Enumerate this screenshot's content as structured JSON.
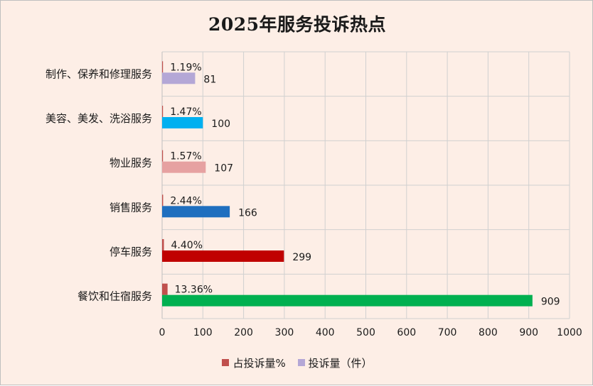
{
  "chart_data": {
    "type": "bar",
    "orientation": "horizontal",
    "title": "2025年服务投诉热点",
    "categories": [
      "制作、保养和修理服务",
      "美容、美发、洗浴服务",
      "物业服务",
      "销售服务",
      "停车服务",
      "餐饮和住宿服务"
    ],
    "series": [
      {
        "name": "占投诉量%",
        "values": [
          1.19,
          1.47,
          1.57,
          2.44,
          4.4,
          13.36
        ],
        "labels": [
          "1.19%",
          "1.47%",
          "1.57%",
          "2.44%",
          "4.40%",
          "13.36%"
        ],
        "color": "#c0504d"
      },
      {
        "name": "投诉量（件）",
        "values": [
          81,
          100,
          107,
          166,
          299,
          909
        ],
        "labels": [
          "81",
          "100",
          "107",
          "166",
          "299",
          "909"
        ],
        "colors": [
          "#b4a7d6",
          "#00b0f0",
          "#e6a1a1",
          "#1f6fbf",
          "#c00000",
          "#00b050"
        ],
        "legend_color": "#b4a7d6"
      }
    ],
    "xlim": [
      0,
      1000
    ],
    "xticks": [
      0,
      100,
      200,
      300,
      400,
      500,
      600,
      700,
      800,
      900,
      1000
    ],
    "grid": true,
    "legend_position": "bottom"
  }
}
